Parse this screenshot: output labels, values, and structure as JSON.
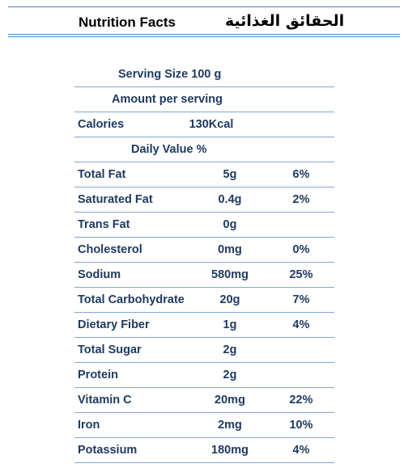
{
  "header": {
    "title_en": "Nutrition Facts",
    "title_ar": "الحقائق الغذائية"
  },
  "serving": {
    "label": "Serving Size 100 g"
  },
  "amount": {
    "label": "Amount per serving"
  },
  "calories": {
    "label": "Calories",
    "value": "130Kcal"
  },
  "daily": {
    "label": "Daily Value %"
  },
  "nutrients": [
    {
      "name": "Total Fat",
      "amount": "5g",
      "dv": "6%"
    },
    {
      "name": "Saturated Fat",
      "amount": "0.4g",
      "dv": "2%"
    },
    {
      "name": "Trans Fat",
      "amount": "0g",
      "dv": ""
    },
    {
      "name": "Cholesterol",
      "amount": "0mg",
      "dv": "0%"
    },
    {
      "name": "Sodium",
      "amount": "580mg",
      "dv": "25%"
    },
    {
      "name": "Total Carbohydrate",
      "amount": "20g",
      "dv": "7%"
    },
    {
      "name": "Dietary Fiber",
      "amount": "1g",
      "dv": "4%"
    },
    {
      "name": "Total Sugar",
      "amount": "2g",
      "dv": ""
    },
    {
      "name": "Protein",
      "amount": "2g",
      "dv": ""
    },
    {
      "name": "Vitamin C",
      "amount": "20mg",
      "dv": "22%"
    },
    {
      "name": "Iron",
      "amount": "2mg",
      "dv": "10%"
    },
    {
      "name": "Potassium",
      "amount": "180mg",
      "dv": "4%"
    }
  ]
}
